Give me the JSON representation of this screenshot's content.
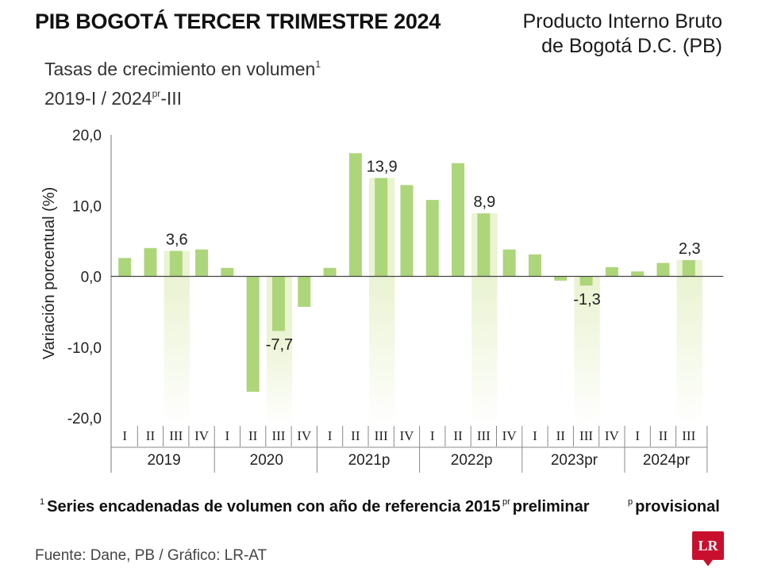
{
  "header": {
    "title": "PIB BOGOTÁ TERCER TRIMESTRE 2024",
    "source_line1": "Producto Interno Bruto",
    "source_line2": "de Bogotá D.C. (PB)",
    "subtitle_line1": "Tasas de crecimiento en volumen",
    "subtitle_line1_sup": "1",
    "subtitle_line2_pre": "2019-I / 2024",
    "subtitle_line2_sup": "pr",
    "subtitle_line2_post": "-III"
  },
  "chart_data": {
    "type": "bar",
    "ylabel": "Variación porcentual (%)",
    "ylim": [
      -20,
      20
    ],
    "yticks": [
      20,
      10,
      0,
      -10,
      -20
    ],
    "ytick_labels": [
      "20,0",
      "10,0",
      "0,0",
      "-10,0",
      "-20,0"
    ],
    "bar_color": "#add57a",
    "highlight_color": "#eaf3d2",
    "quarter_labels": [
      "I",
      "II",
      "III",
      "IV"
    ],
    "groups": [
      {
        "label": "2019",
        "values": [
          2.6,
          4.0,
          3.6,
          3.8
        ]
      },
      {
        "label": "2020",
        "values": [
          1.2,
          -16.3,
          -7.7,
          -4.3
        ]
      },
      {
        "label": "2021p",
        "values": [
          1.2,
          17.4,
          13.9,
          12.9
        ]
      },
      {
        "label": "2022p",
        "values": [
          10.8,
          16.0,
          8.9,
          3.8
        ]
      },
      {
        "label": "2023pr",
        "values": [
          3.1,
          -0.6,
          -1.3,
          1.3
        ]
      },
      {
        "label": "2024pr",
        "values": [
          0.7,
          1.9,
          2.3
        ]
      }
    ],
    "highlighted_quarter": "III",
    "data_labels": [
      "3,6",
      "-7,7",
      "13,9",
      "8,9",
      "-1,3",
      "2,3"
    ]
  },
  "footnotes": {
    "note1_sup": "1",
    "note1": "Series encadenadas de volumen con año de referencia 2015",
    "note2_sup": "pr",
    "note2": "preliminar",
    "note3_sup": "p",
    "note3": "provisional"
  },
  "footer": {
    "source": "Fuente: Dane, PB / Gráfico: LR-AT",
    "logo": "LR"
  }
}
